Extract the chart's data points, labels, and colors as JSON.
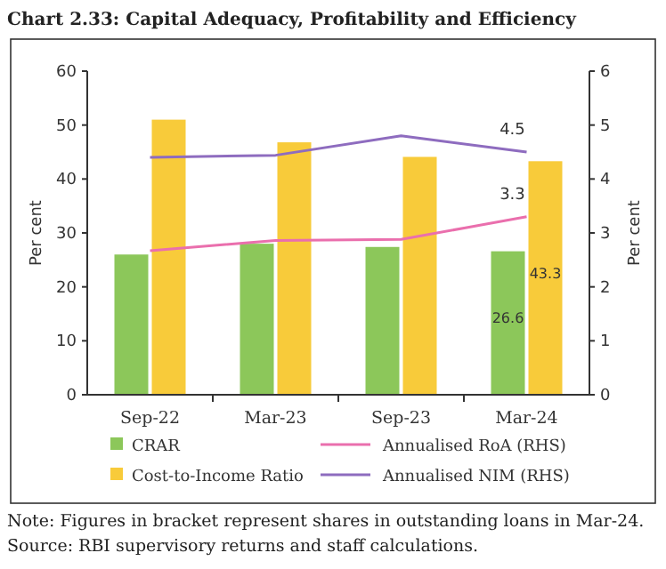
{
  "chart_data": {
    "type": "bar",
    "title": "Chart 2.33: Capital Adequacy, Profitability and Efficiency",
    "categories": [
      "Sep-22",
      "Mar-23",
      "Sep-23",
      "Mar-24"
    ],
    "series": [
      {
        "name": "CRAR",
        "color": "#8cc75a",
        "values": [
          26,
          28,
          27.4,
          26.6
        ],
        "value_labels": [
          null,
          null,
          null,
          "26.6"
        ]
      },
      {
        "name": "Cost-to-Income Ratio",
        "color": "#f8cb3a",
        "values": [
          51,
          46.8,
          44.1,
          43.3
        ],
        "value_labels": [
          null,
          null,
          null,
          "43.3"
        ]
      },
      {
        "name": "Annualised RoA (RHS)",
        "type": "line",
        "axis": "y2",
        "color": "#ea6fad",
        "values": [
          2.67,
          2.86,
          2.88,
          3.3
        ],
        "value_labels": [
          null,
          null,
          null,
          "3.3"
        ]
      },
      {
        "name": "Annualised NIM (RHS)",
        "type": "line",
        "axis": "y2",
        "color": "#8e6cbf",
        "values": [
          4.4,
          4.44,
          4.8,
          4.5
        ],
        "value_labels": [
          null,
          null,
          null,
          "4.5"
        ]
      }
    ],
    "ylabel": "Per cent",
    "y2label": "Per cent",
    "ylim": [
      0,
      60
    ],
    "yticks": [
      0,
      10,
      20,
      30,
      40,
      50,
      60
    ],
    "y2lim": [
      0,
      6
    ],
    "y2ticks": [
      0,
      1,
      2,
      3,
      4,
      5,
      6
    ],
    "legend": "bottom",
    "grid": false,
    "annotations": [
      "Note: Figures in bracket represent shares in outstanding loans in Mar-24.",
      "Source: RBI supervisory returns and staff calculations."
    ]
  }
}
